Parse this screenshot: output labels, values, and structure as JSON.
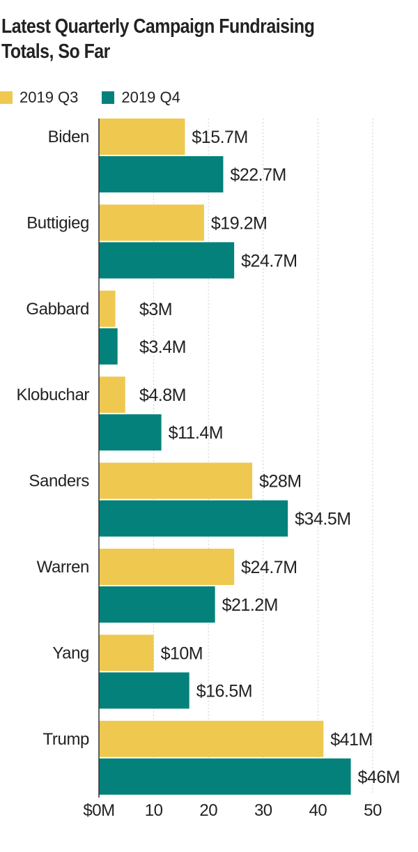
{
  "chart_data": {
    "type": "bar",
    "orientation": "horizontal",
    "title": "Latest Quarterly Campaign Fundraising Totals, So Far",
    "categories": [
      "Biden",
      "Buttigieg",
      "Gabbard",
      "Klobuchar",
      "Sanders",
      "Warren",
      "Yang",
      "Trump"
    ],
    "series": [
      {
        "name": "2019 Q3",
        "color": "#efc84f",
        "values": [
          15.7,
          19.2,
          3,
          4.8,
          28,
          24.7,
          10,
          41
        ],
        "labels": [
          "$15.7M",
          "$19.2M",
          "$3M",
          "$4.8M",
          "$28M",
          "$24.7M",
          "$10M",
          "$41M"
        ]
      },
      {
        "name": "2019 Q4",
        "color": "#03817a",
        "values": [
          22.7,
          24.7,
          3.4,
          11.4,
          34.5,
          21.2,
          16.5,
          46
        ],
        "labels": [
          "$22.7M",
          "$24.7M",
          "$3.4M",
          "$11.4M",
          "$34.5M",
          "$21.2M",
          "$16.5M",
          "$46M"
        ]
      }
    ],
    "x_ticks": [
      0,
      10,
      20,
      30,
      40,
      50
    ],
    "x_tick_labels": [
      "$0M",
      "10",
      "20",
      "30",
      "40",
      "50"
    ],
    "xlim": [
      0,
      50
    ],
    "grid": true,
    "legend_position": "top-left",
    "xlabel": "",
    "ylabel": ""
  }
}
